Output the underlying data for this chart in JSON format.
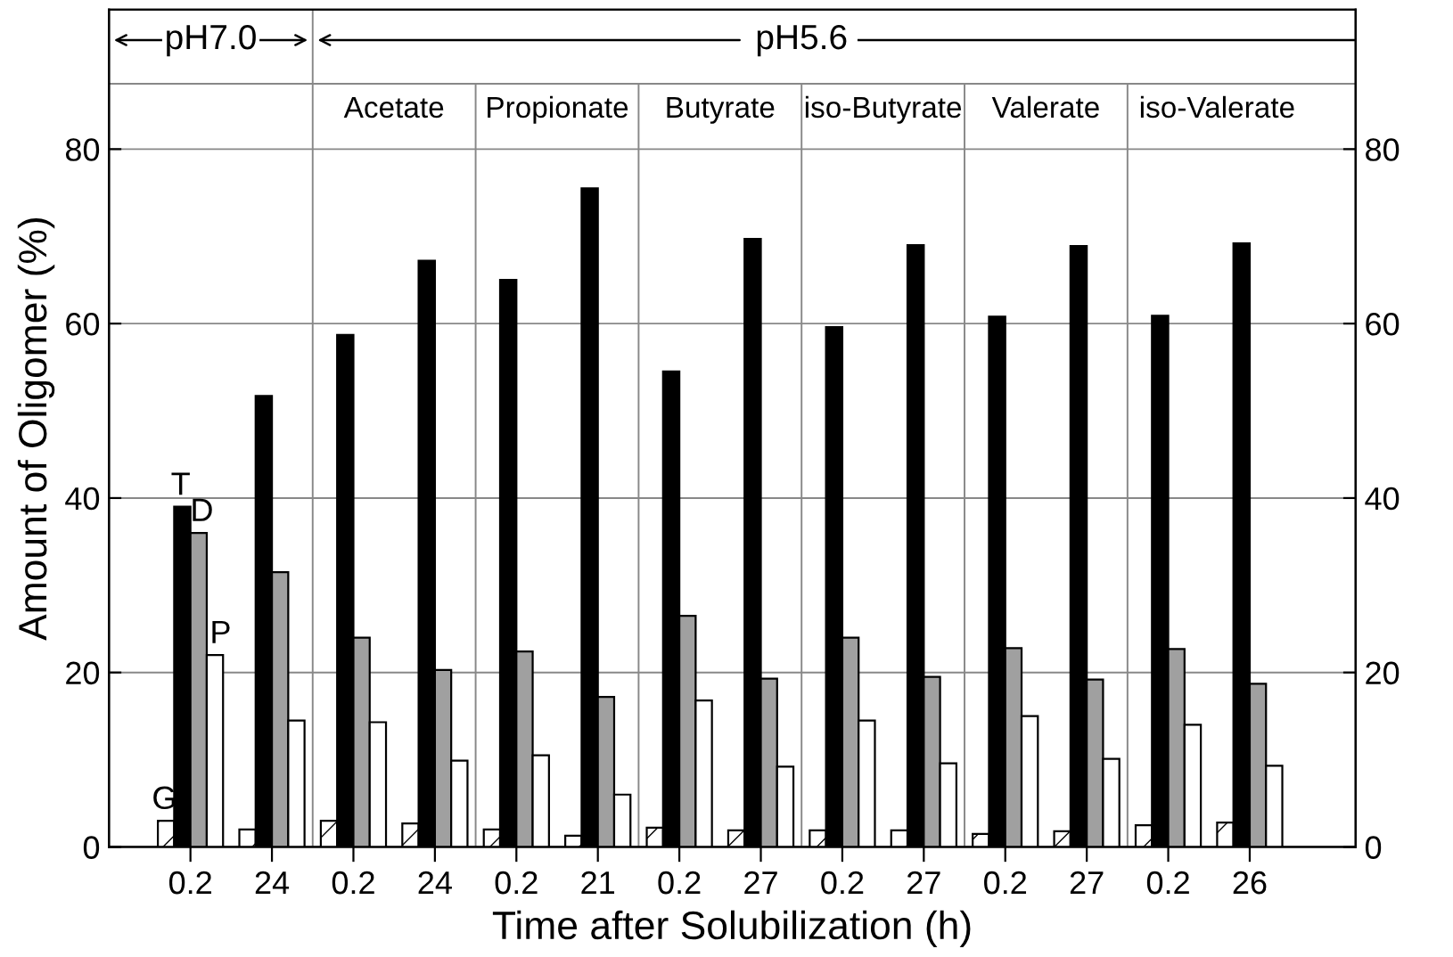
{
  "chart_data": {
    "type": "bar",
    "xlabel": "Time after Solubilization (h)",
    "ylabel": "Amount of Oligomer (%)",
    "categories": [
      "0.2",
      "24",
      "0.2",
      "24",
      "0.2",
      "21",
      "0.2",
      "27",
      "0.2",
      "27",
      "0.2",
      "27",
      "0.2",
      "26"
    ],
    "series": [
      {
        "name": "G",
        "color": "#000000",
        "values": [
          3,
          2,
          3,
          2.7,
          2,
          1.3,
          2.2,
          1.9,
          1.9,
          1.9,
          1.5,
          1.8,
          2.5,
          2.8
        ]
      },
      {
        "name": "T",
        "color": "#000000",
        "values": [
          39,
          51.7,
          58.7,
          67.2,
          65,
          75.5,
          54.5,
          69.7,
          59.6,
          69,
          60.8,
          68.9,
          60.9,
          69.2
        ]
      },
      {
        "name": "D",
        "color": "#a0a0a0",
        "values": [
          36,
          31.5,
          24,
          20.3,
          22.4,
          17.2,
          26.5,
          19.3,
          24,
          19.5,
          22.8,
          19.2,
          22.7,
          18.7
        ]
      },
      {
        "name": "P",
        "color": "#ffffff",
        "values": [
          22,
          14.5,
          14.3,
          9.9,
          10.5,
          6,
          16.8,
          9.2,
          14.5,
          9.6,
          15,
          10.1,
          14,
          9.3
        ]
      }
    ],
    "ylim": [
      0,
      96
    ],
    "yticks": [
      0,
      20,
      40,
      60,
      80
    ],
    "y2lim": [
      0,
      96
    ],
    "y2ticks": [
      0,
      20,
      40,
      60,
      80
    ],
    "grid": "y",
    "legend": false,
    "annotations": [
      "pH7.0",
      "pH5.6",
      "Acetate",
      "Propionate",
      "Butyrate",
      "iso-Butyrate",
      "Valerate",
      "iso-Valerate"
    ]
  }
}
